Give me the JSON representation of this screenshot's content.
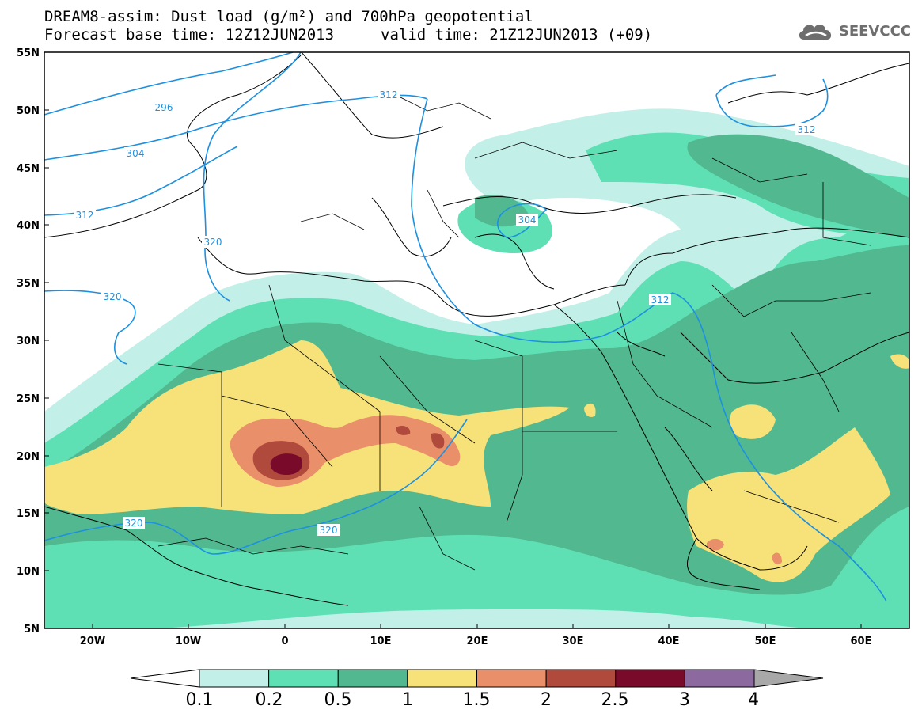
{
  "header": {
    "title_line1": "DREAM8-assim: Dust load (g/m²) and 700hPa geopotential",
    "title_line2_left": "Forecast base time: 12Z12JUN2013",
    "title_line2_right": "valid time: 21Z12JUN2013 (+09)",
    "logo_text": "SEEVCCC"
  },
  "map": {
    "lat_labels": [
      "55N",
      "50N",
      "45N",
      "40N",
      "35N",
      "30N",
      "25N",
      "20N",
      "15N",
      "10N",
      "5N"
    ],
    "lon_labels": [
      "20W",
      "10W",
      "0",
      "10E",
      "20E",
      "30E",
      "40E",
      "50E",
      "60E"
    ],
    "contour_labels": [
      "296",
      "304",
      "312",
      "312",
      "312",
      "320",
      "320",
      "320",
      "320",
      "304",
      "312"
    ],
    "contour_color": "#1e90e0"
  },
  "colorbar": {
    "ticks": [
      "0.1",
      "0.2",
      "0.5",
      "1",
      "1.5",
      "2",
      "2.5",
      "3",
      "4"
    ],
    "colors": [
      "#c2f0e8",
      "#5ee0b4",
      "#52b890",
      "#f7e27a",
      "#e9906a",
      "#b04a3c",
      "#7a0a2a",
      "#8c6aa0",
      "#a8a8a8"
    ]
  }
}
